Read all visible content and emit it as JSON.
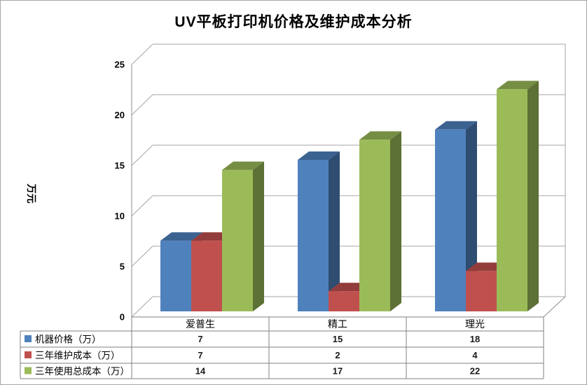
{
  "window": {
    "background": "#ffffff",
    "frame_border_color": "#a6a6a6"
  },
  "chart_data": {
    "type": "bar",
    "variant": "3d-clustered-column",
    "title": "UV平板打印机价格及维护成本分析",
    "ylabel": "万元",
    "categories": [
      "爱普生",
      "精工",
      "理光"
    ],
    "series": [
      {
        "name": "机器价格（万）",
        "color": "#4F81BD",
        "values": [
          7,
          15,
          18
        ]
      },
      {
        "name": "三年维护成本（万）",
        "color": "#C0504D",
        "values": [
          7,
          2,
          4
        ]
      },
      {
        "name": "三年使用总成本（万）",
        "color": "#9BBB59",
        "values": [
          14,
          17,
          22
        ]
      }
    ],
    "ylim": [
      0,
      25
    ],
    "ytick_interval": 5,
    "yticks": [
      "0",
      "5",
      "10",
      "15",
      "20",
      "25"
    ],
    "grid": true,
    "legend_position": "left-of-data-table",
    "data_table_shown": true,
    "gridline_color": "#a6a6a6",
    "axis_color": "#8c8c8c",
    "table_border_color": "#808080",
    "text_color": "#000000",
    "value_text_color": "#1a1a1a"
  }
}
